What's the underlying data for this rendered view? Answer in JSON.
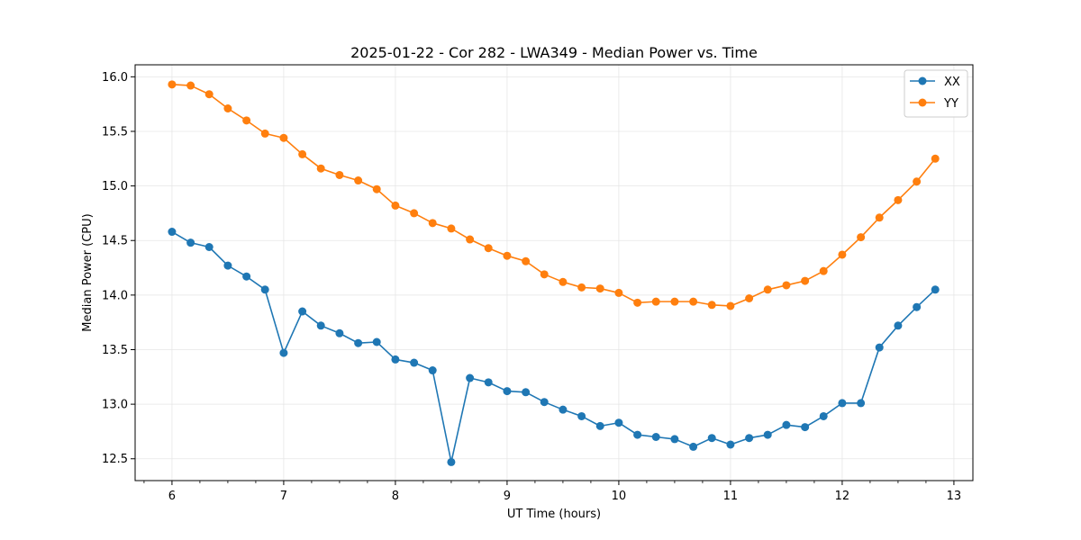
{
  "chart_data": {
    "type": "line",
    "title": "2025-01-22 - Cor 282 - LWA349 - Median Power vs. Time",
    "xlabel": "UT Time (hours)",
    "ylabel": "Median Power (CPU)",
    "xlim": [
      5.67,
      13.17
    ],
    "ylim": [
      12.3,
      16.11
    ],
    "xticks": [
      6,
      7,
      8,
      9,
      10,
      11,
      12,
      13
    ],
    "xtick_labels": [
      "6",
      "7",
      "8",
      "9",
      "10",
      "11",
      "12",
      "13"
    ],
    "xminor_step": 0.25,
    "yticks": [
      12.5,
      13.0,
      13.5,
      14.0,
      14.5,
      15.0,
      15.5,
      16.0
    ],
    "ytick_labels": [
      "12.5",
      "13.0",
      "13.5",
      "14.0",
      "14.5",
      "15.0",
      "15.5",
      "16.0"
    ],
    "grid": true,
    "legend_position": "top-right",
    "x": [
      6.0,
      6.167,
      6.333,
      6.5,
      6.667,
      6.833,
      7.0,
      7.167,
      7.333,
      7.5,
      7.667,
      7.833,
      8.0,
      8.167,
      8.333,
      8.5,
      8.667,
      8.833,
      9.0,
      9.167,
      9.333,
      9.5,
      9.667,
      9.833,
      10.0,
      10.167,
      10.333,
      10.5,
      10.667,
      10.833,
      11.0,
      11.167,
      11.333,
      11.5,
      11.667,
      11.833,
      12.0,
      12.167,
      12.333,
      12.5,
      12.667,
      12.833
    ],
    "series": [
      {
        "name": "XX",
        "color": "#1f77b4",
        "values": [
          14.58,
          14.48,
          14.44,
          14.27,
          14.17,
          14.05,
          13.47,
          13.85,
          13.72,
          13.65,
          13.56,
          13.57,
          13.41,
          13.38,
          13.31,
          12.47,
          13.24,
          13.2,
          13.12,
          13.11,
          13.02,
          12.95,
          12.89,
          12.8,
          12.83,
          12.72,
          12.7,
          12.68,
          12.61,
          12.69,
          12.63,
          12.69,
          12.72,
          12.81,
          12.79,
          12.89,
          13.01,
          13.01,
          13.52,
          13.72,
          13.89,
          14.05
        ]
      },
      {
        "name": "YY",
        "color": "#ff7f0e",
        "values": [
          15.93,
          15.92,
          15.84,
          15.71,
          15.6,
          15.48,
          15.44,
          15.29,
          15.16,
          15.1,
          15.05,
          14.97,
          14.82,
          14.75,
          14.66,
          14.61,
          14.51,
          14.43,
          14.36,
          14.31,
          14.19,
          14.12,
          14.07,
          14.06,
          14.02,
          13.93,
          13.94,
          13.94,
          13.94,
          13.91,
          13.9,
          13.97,
          14.05,
          14.09,
          14.13,
          14.22,
          14.37,
          14.53,
          14.71,
          14.87,
          15.04,
          15.25
        ]
      }
    ]
  }
}
